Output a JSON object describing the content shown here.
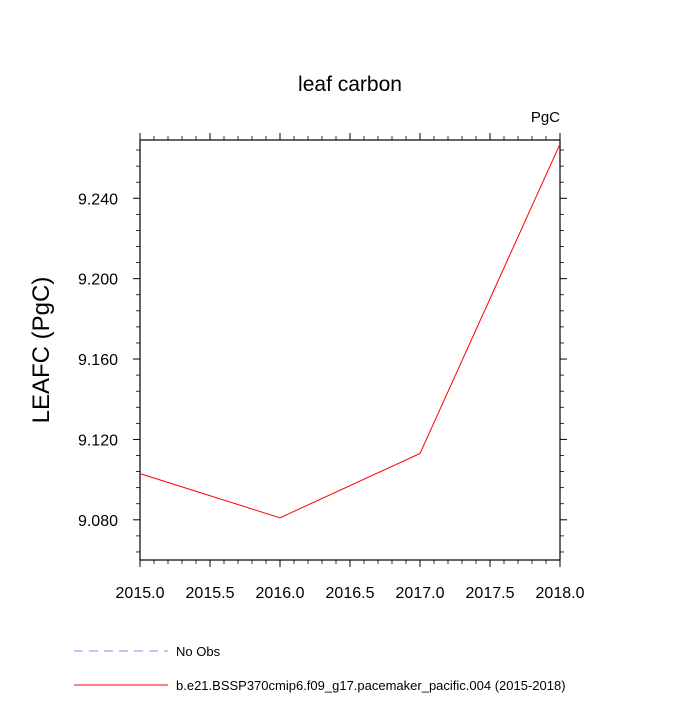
{
  "chart_data": {
    "type": "line",
    "title": "leaf carbon",
    "units": "PgC",
    "xlabel": "",
    "ylabel": "LEAFC  (PgC)",
    "xlim": [
      2015.0,
      2018.0
    ],
    "ylim": [
      9.06,
      9.269
    ],
    "x_ticks": [
      "2015.0",
      "2015.5",
      "2016.0",
      "2016.5",
      "2017.0",
      "2017.5",
      "2018.0"
    ],
    "x_tick_values": [
      2015.0,
      2015.5,
      2016.0,
      2016.5,
      2017.0,
      2017.5,
      2018.0
    ],
    "y_ticks": [
      "9.080",
      "9.120",
      "9.160",
      "9.200",
      "9.240"
    ],
    "y_tick_values": [
      9.08,
      9.12,
      9.16,
      9.2,
      9.24
    ],
    "y_minor_step": 0.008,
    "x_minor_step": 0.1,
    "grid": false,
    "legend_position": "bottom-left",
    "series": [
      {
        "name": "b.e21.BSSP370cmip6.f09_g17.pacemaker_pacific.004 (2015-2018)",
        "color": "#ff0000",
        "style": "solid",
        "x": [
          2015.0,
          2016.0,
          2017.0,
          2018.0
        ],
        "y": [
          9.103,
          9.081,
          9.113,
          9.267
        ]
      }
    ],
    "legend": [
      {
        "label": "No Obs",
        "color": "#8888ff",
        "style": "dashed"
      },
      {
        "label": "b.e21.BSSP370cmip6.f09_g17.pacemaker_pacific.004 (2015-2018)",
        "color": "#ff0000",
        "style": "solid"
      }
    ]
  }
}
